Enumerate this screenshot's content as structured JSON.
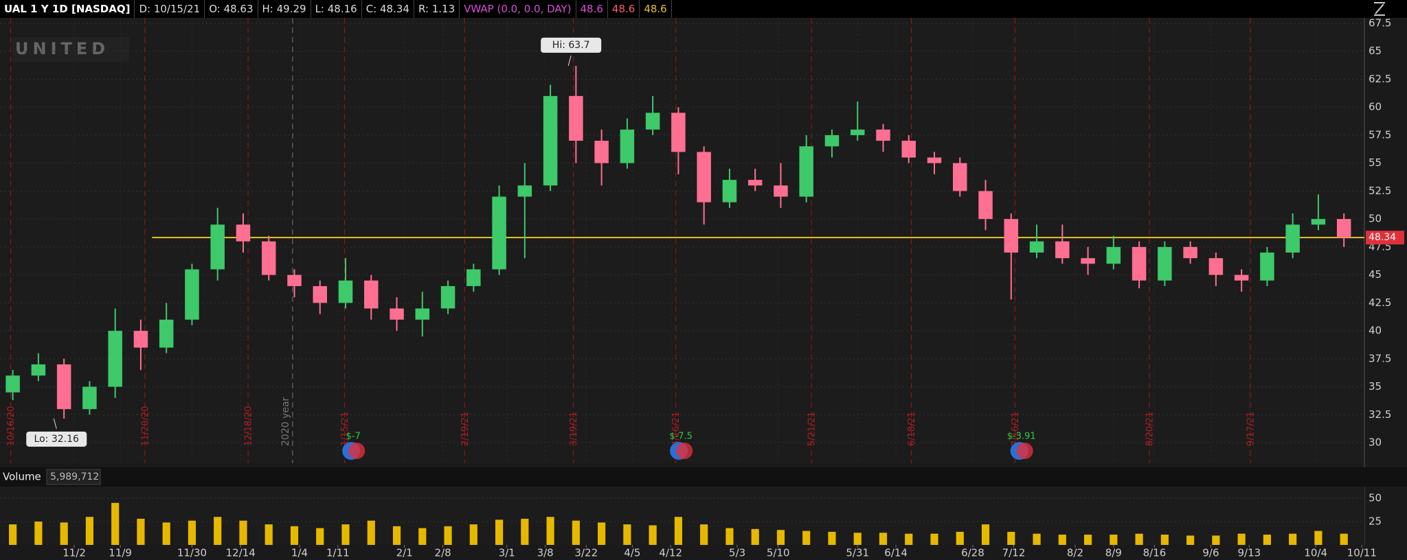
{
  "header": {
    "symbol": "UAL 1 Y 1D [NASDAQ]",
    "date": "D: 10/15/21",
    "open": "O: 48.63",
    "high": "H: 49.29",
    "low": "L: 48.16",
    "close": "C: 48.34",
    "range": "R: 1.13",
    "study": "VWAP (0.0, 0.0, DAY)",
    "study_values": [
      "48.6",
      "48.6",
      "48.6"
    ],
    "study_colors": [
      "#d84fd8",
      "#ff5c7a",
      "#e6c229"
    ]
  },
  "chart_data": {
    "type": "candlestick",
    "watermark": "UNITED",
    "x": [
      0.5,
      1.5,
      2.5,
      3.5,
      4.5,
      5.5,
      6.5,
      7.5,
      8.5,
      9.5,
      10.5,
      11.5,
      12.5,
      13.5,
      14.5,
      15.5,
      16.5,
      17.5,
      18.5,
      19.5,
      20.5,
      21.5,
      22.5,
      23.5,
      24.5,
      25.5,
      26.5,
      27.5,
      28.5,
      29.5,
      30.5,
      31.5,
      32.5,
      33.5,
      34.5,
      35.5,
      36.5,
      37.5,
      38.5,
      39.5,
      40.5,
      41.5,
      42.5,
      43.5,
      44.5,
      45.5,
      46.5,
      47.5,
      48.5,
      49.5,
      50.5,
      51.5,
      52.5
    ],
    "open": [
      34.5,
      36,
      37,
      33,
      35,
      40,
      38.5,
      41,
      45.5,
      49.5,
      48,
      45,
      44,
      42.5,
      44.5,
      42,
      41,
      42,
      44,
      45.5,
      52,
      53,
      61,
      57,
      55,
      58,
      59.5,
      56,
      51.5,
      53.5,
      53,
      52,
      56.5,
      57.5,
      58,
      57,
      55.5,
      55,
      52.5,
      50,
      47,
      48,
      46.5,
      46,
      47.5,
      44.5,
      47.5,
      46.5,
      45,
      44.5,
      47,
      49.5,
      50
    ],
    "high": [
      36.5,
      38,
      37.5,
      35.5,
      42,
      41,
      42.5,
      46,
      51,
      50.5,
      48.5,
      45.5,
      44.5,
      46.5,
      45,
      43,
      43.5,
      44.5,
      46,
      53,
      55,
      62,
      63.7,
      58,
      59,
      61,
      60,
      56.5,
      54.5,
      54.5,
      55,
      57.5,
      58,
      60.5,
      58.5,
      57.5,
      56,
      55.5,
      53.5,
      50.5,
      49.5,
      49.5,
      47.5,
      48.5,
      48,
      48,
      48,
      47,
      45.5,
      47.5,
      50.5,
      52.2,
      50.5
    ],
    "low": [
      33.8,
      35.5,
      32.16,
      32.5,
      34,
      36.5,
      38,
      40.5,
      44.5,
      47,
      44.5,
      43,
      41.5,
      42,
      41,
      40,
      39.5,
      41.5,
      43.5,
      45,
      46.5,
      52.5,
      55,
      53,
      54.5,
      57.5,
      54,
      49.5,
      51,
      52.5,
      51,
      51.5,
      55.5,
      57,
      56,
      55,
      54,
      52,
      49,
      42.8,
      46.5,
      46,
      45,
      45.5,
      43.8,
      44,
      46,
      44,
      43.5,
      44,
      46.5,
      49,
      47.5
    ],
    "close": [
      36,
      37,
      33,
      35,
      40,
      38.5,
      41,
      45.5,
      49.5,
      48,
      45,
      44,
      42.5,
      44.5,
      42,
      41,
      42,
      44,
      45.5,
      52,
      53,
      61,
      57,
      55,
      58,
      59.5,
      56,
      51.5,
      53.5,
      53,
      52,
      56.5,
      57.5,
      58,
      57,
      55.5,
      55,
      52.5,
      50,
      47,
      48,
      46.5,
      46,
      47.5,
      44.5,
      47.5,
      46.5,
      45,
      44.5,
      47,
      49.5,
      50,
      48.34
    ],
    "up_color": "#3ec96a",
    "down_color": "#ff6f91",
    "xlim": [
      0,
      53.3
    ],
    "ylim": [
      28.16,
      67.99
    ],
    "yticks": [
      30,
      32.5,
      35,
      37.5,
      40,
      42.5,
      45,
      47.5,
      50,
      52.5,
      55,
      57.5,
      60,
      62.5,
      65,
      67.5
    ],
    "xticks": [
      {
        "value": 2.9,
        "label": "11/2"
      },
      {
        "value": 4.7,
        "label": "11/9"
      },
      {
        "value": 7.5,
        "label": "11/30"
      },
      {
        "value": 9.4,
        "label": "12/14"
      },
      {
        "value": 11.7,
        "label": "1/4"
      },
      {
        "value": 13.2,
        "label": "1/11"
      },
      {
        "value": 15.8,
        "label": "2/1"
      },
      {
        "value": 17.3,
        "label": "2/8"
      },
      {
        "value": 19.8,
        "label": "3/1"
      },
      {
        "value": 21.3,
        "label": "3/8"
      },
      {
        "value": 22.9,
        "label": "3/22"
      },
      {
        "value": 24.7,
        "label": "4/5"
      },
      {
        "value": 26.2,
        "label": "4/12"
      },
      {
        "value": 28.8,
        "label": "5/3"
      },
      {
        "value": 30.4,
        "label": "5/10"
      },
      {
        "value": 33.5,
        "label": "5/31"
      },
      {
        "value": 35,
        "label": "6/14"
      },
      {
        "value": 38,
        "label": "6/28"
      },
      {
        "value": 39.6,
        "label": "7/12"
      },
      {
        "value": 42,
        "label": "8/2"
      },
      {
        "value": 43.5,
        "label": "8/9"
      },
      {
        "value": 45.1,
        "label": "8/16"
      },
      {
        "value": 47.3,
        "label": "9/6"
      },
      {
        "value": 48.8,
        "label": "9/13"
      },
      {
        "value": 51.4,
        "label": "10/4"
      },
      {
        "value": 53.2,
        "label": "10/11"
      }
    ],
    "grid": true,
    "period_markers": [
      {
        "value": 0.42,
        "label": "10/16/20"
      },
      {
        "value": 5.66,
        "label": "11/20/20"
      },
      {
        "value": 9.69,
        "label": "12/18/20"
      },
      {
        "value": 13.46,
        "label": "1/15/21"
      },
      {
        "value": 18.15,
        "label": "2/19/21"
      },
      {
        "value": 22.4,
        "label": "3/19/21"
      },
      {
        "value": 26.4,
        "label": "4/16/21"
      },
      {
        "value": 31.7,
        "label": "5/21/21"
      },
      {
        "value": 35.6,
        "label": "6/18/21"
      },
      {
        "value": 39.65,
        "label": "7/16/21"
      },
      {
        "value": 44.9,
        "label": "8/20/21"
      },
      {
        "value": 48.85,
        "label": "9/17/21"
      }
    ],
    "year_marker": {
      "value": 11.43,
      "label": "2020 year"
    },
    "events": [
      {
        "value": 13.8,
        "label": "$-7"
      },
      {
        "value": 26.6,
        "label": "$-7.5"
      },
      {
        "value": 39.9,
        "label": "$-3.91"
      }
    ],
    "high_annotation": {
      "x": 22.2,
      "value": 63.7,
      "label": "Hi: 63.7"
    },
    "low_annotation": {
      "x": 2.1,
      "value": 32.16,
      "label": "Lo: 32.16"
    },
    "price_line": {
      "start": 5.94,
      "value": 48.34,
      "label": "48.34",
      "color": "#e6c229"
    },
    "volume": {
      "title": "Volume",
      "value_label": "5,989,712",
      "color": "#e6b800",
      "ylim": [
        0,
        62.5
      ],
      "yticks": [
        25,
        50
      ],
      "values": [
        22,
        25,
        24,
        30,
        45,
        28,
        24,
        26,
        30,
        26,
        22,
        20,
        18,
        22,
        26,
        20,
        18,
        20,
        22,
        27,
        28,
        30,
        26,
        24,
        22,
        21,
        30,
        22,
        18,
        17,
        16,
        15,
        14,
        13,
        13,
        12,
        12,
        14,
        22,
        14,
        12,
        11,
        11,
        11,
        12,
        11,
        10,
        10,
        12,
        11,
        12,
        15,
        12
      ]
    }
  }
}
